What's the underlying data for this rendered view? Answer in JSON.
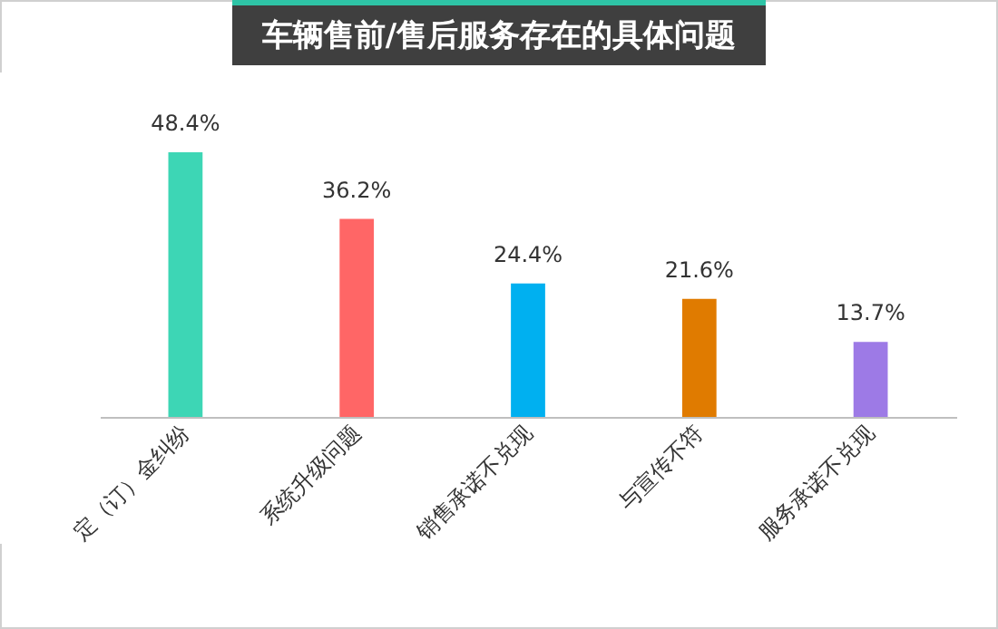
{
  "chart_data": {
    "type": "bar",
    "title": "车辆售前/售后服务存在的具体问题",
    "categories": [
      "定（订）金纠纷",
      "系统升级问题",
      "销售承诺不兑现",
      "与宣传不符",
      "服务承诺不兑现"
    ],
    "values": [
      48.4,
      36.2,
      24.4,
      21.6,
      13.7
    ],
    "colors": [
      "#3dd6b5",
      "#ff6666",
      "#00b0f0",
      "#e07b00",
      "#9d7ae6"
    ],
    "value_labels": [
      "48.4%",
      "36.2%",
      "24.4%",
      "21.6%",
      "13.7%"
    ],
    "grid": false
  }
}
